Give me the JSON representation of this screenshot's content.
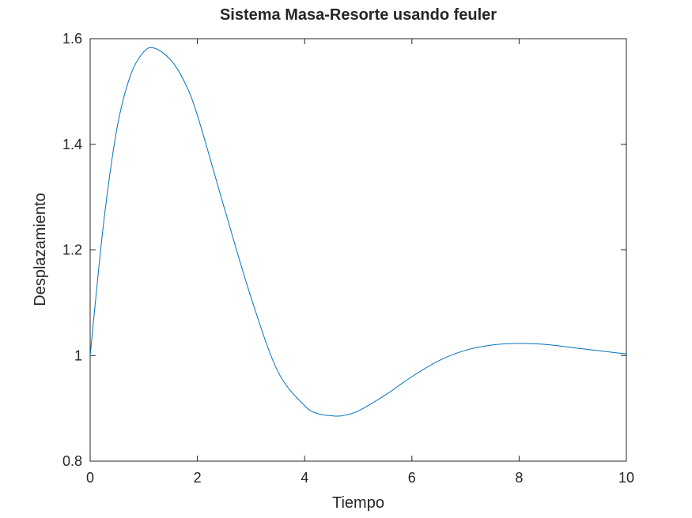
{
  "chart_data": {
    "type": "line",
    "title": "Sistema Masa-Resorte usando feuler",
    "xlabel": "Tiempo",
    "ylabel": "Desplazamiento",
    "xlim": [
      0,
      10
    ],
    "ylim": [
      0.8,
      1.6
    ],
    "xticks": [
      0,
      2,
      4,
      6,
      8,
      10
    ],
    "yticks": [
      0.8,
      1,
      1.2,
      1.4,
      1.6
    ],
    "xtick_labels": [
      "0",
      "2",
      "4",
      "6",
      "8",
      "10"
    ],
    "ytick_labels": [
      "0.8",
      "1",
      "1.2",
      "1.4",
      "1.6"
    ],
    "grid": false,
    "line_color": "#0072bd",
    "series": [
      {
        "x": [
          0,
          0.25,
          0.5,
          0.75,
          1.0,
          1.2,
          1.5,
          1.75,
          2.0,
          2.5,
          3.0,
          3.5,
          4.0,
          4.25,
          4.5,
          4.7,
          5.0,
          5.5,
          6.0,
          6.5,
          7.0,
          7.5,
          8.0,
          8.5,
          9.0,
          9.5,
          10.0
        ],
        "y": [
          1.0,
          1.25,
          1.43,
          1.53,
          1.575,
          1.582,
          1.56,
          1.52,
          1.455,
          1.28,
          1.11,
          0.97,
          0.905,
          0.89,
          0.886,
          0.886,
          0.895,
          0.925,
          0.96,
          0.99,
          1.01,
          1.02,
          1.023,
          1.021,
          1.015,
          1.009,
          1.003
        ]
      }
    ]
  }
}
